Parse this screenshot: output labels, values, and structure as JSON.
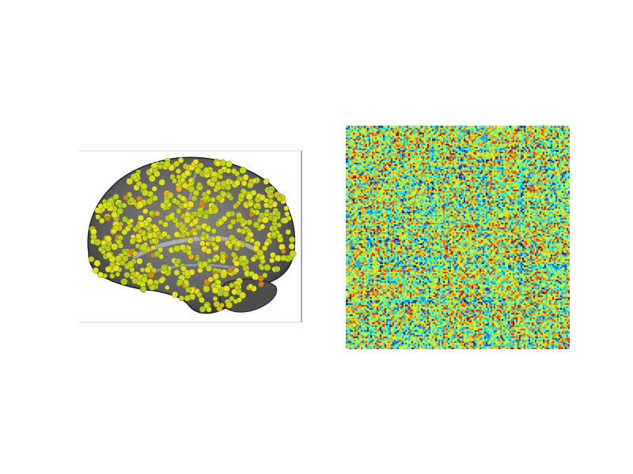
{
  "figure": {
    "left_panel": {
      "kind": "brain-render",
      "view": "sagittal",
      "node_colors": [
        "#d7e01c",
        "#c5d51a",
        "#e9e021",
        "#b9cc1f",
        "#e3b41f",
        "#d0881b",
        "#a8c82a"
      ],
      "surface_color": "#6b6b6b"
    },
    "right_panel": {
      "kind": "connectivity-matrix",
      "colormap": "jet",
      "colormap_stops": [
        "#00007f",
        "#0050ff",
        "#00d0ff",
        "#60ffa0",
        "#e0ff20",
        "#ffa000",
        "#ff2000",
        "#7f0000"
      ]
    }
  }
}
